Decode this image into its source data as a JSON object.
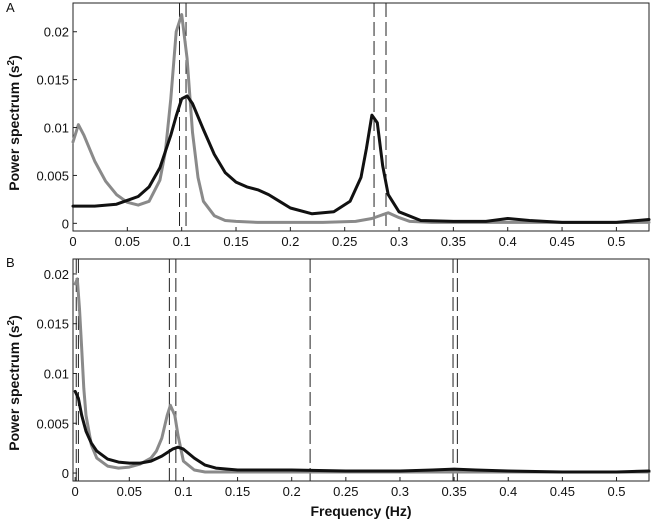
{
  "figure": {
    "ylabel": "Power spectrum (s",
    "ylabel_sup": "2",
    "ylabel_end": ")",
    "xlabel": "Frequency (Hz)"
  },
  "chart_data": [
    {
      "panel": "A",
      "type": "line",
      "xlabel": "",
      "ylabel": "Power spectrum (s2)",
      "xlim": [
        0,
        0.53
      ],
      "ylim": [
        -0.0008,
        0.023
      ],
      "xticks": [
        0,
        0.05,
        0.1,
        0.15,
        0.2,
        0.25,
        0.3,
        0.35,
        0.4,
        0.45,
        0.5
      ],
      "xtick_labels": [
        "0",
        "0.05",
        "0.1",
        "0.15",
        "0.2",
        "0.25",
        "0.3",
        "0.35",
        "0.4",
        "0.45",
        "0.5"
      ],
      "yticks": [
        0,
        0.005,
        0.01,
        0.015,
        0.02
      ],
      "ytick_labels": [
        "0",
        "0.005",
        "0.01",
        "0.015",
        "0.02"
      ],
      "grid": false,
      "legend": "none",
      "vlines": [
        0.098,
        0.104,
        0.277,
        0.288
      ],
      "series": [
        {
          "color": "#8a8a8a",
          "x": [
            0,
            0.005,
            0.01,
            0.02,
            0.03,
            0.04,
            0.05,
            0.06,
            0.07,
            0.08,
            0.085,
            0.09,
            0.095,
            0.1,
            0.105,
            0.11,
            0.115,
            0.12,
            0.13,
            0.14,
            0.15,
            0.17,
            0.2,
            0.23,
            0.26,
            0.275,
            0.285,
            0.29,
            0.3,
            0.31,
            0.33,
            0.4,
            0.5,
            0.53
          ],
          "y": [
            0.0085,
            0.0103,
            0.0092,
            0.0065,
            0.0044,
            0.003,
            0.0022,
            0.0019,
            0.0023,
            0.0045,
            0.0075,
            0.013,
            0.02,
            0.0218,
            0.0172,
            0.0095,
            0.0048,
            0.0023,
            0.0008,
            0.0003,
            0.0002,
            0.0001,
            0.0001,
            0.0001,
            0.0002,
            0.0005,
            0.0009,
            0.0011,
            0.0006,
            0.0002,
            0.0001,
            0.0001,
            0.0001,
            0.0001
          ]
        },
        {
          "color": "#111111",
          "x": [
            0,
            0.02,
            0.04,
            0.06,
            0.07,
            0.08,
            0.09,
            0.095,
            0.1,
            0.105,
            0.11,
            0.12,
            0.13,
            0.14,
            0.15,
            0.16,
            0.17,
            0.18,
            0.19,
            0.2,
            0.22,
            0.24,
            0.255,
            0.265,
            0.27,
            0.275,
            0.28,
            0.285,
            0.29,
            0.3,
            0.32,
            0.35,
            0.38,
            0.4,
            0.42,
            0.45,
            0.5,
            0.53
          ],
          "y": [
            0.0018,
            0.0018,
            0.002,
            0.0028,
            0.0038,
            0.0058,
            0.0092,
            0.0112,
            0.013,
            0.0133,
            0.0125,
            0.0098,
            0.0072,
            0.0053,
            0.0043,
            0.0038,
            0.0035,
            0.003,
            0.0023,
            0.0016,
            0.001,
            0.0012,
            0.0023,
            0.0048,
            0.0078,
            0.0113,
            0.0105,
            0.006,
            0.003,
            0.0012,
            0.0003,
            0.0002,
            0.0002,
            0.0005,
            0.0003,
            0.0001,
            0.0001,
            0.0004
          ]
        }
      ]
    },
    {
      "panel": "B",
      "type": "line",
      "xlabel": "Frequency (Hz)",
      "ylabel": "Power spectrum (s2)",
      "xlim": [
        -0.002,
        0.53
      ],
      "ylim": [
        -0.0008,
        0.0215
      ],
      "xticks": [
        0,
        0.05,
        0.1,
        0.15,
        0.2,
        0.25,
        0.3,
        0.35,
        0.4,
        0.45,
        0.5
      ],
      "xtick_labels": [
        "0",
        "0.05",
        "0.1",
        "0.15",
        "0.2",
        "0.25",
        "0.3",
        "0.35",
        "0.4",
        "0.45",
        "0.5"
      ],
      "yticks": [
        0,
        0.005,
        0.01,
        0.015,
        0.02
      ],
      "ytick_labels": [
        "0",
        "0.005",
        "0.01",
        "0.015",
        "0.02"
      ],
      "grid": false,
      "legend": "none",
      "vlines": [
        0.001,
        0.003,
        0.087,
        0.093,
        0.217,
        0.349,
        0.353
      ],
      "series": [
        {
          "color": "#8a8a8a",
          "x": [
            0,
            0.002,
            0.004,
            0.006,
            0.008,
            0.01,
            0.015,
            0.02,
            0.03,
            0.04,
            0.05,
            0.06,
            0.07,
            0.075,
            0.08,
            0.085,
            0.088,
            0.092,
            0.095,
            0.1,
            0.11,
            0.12,
            0.15,
            0.2,
            0.3,
            0.35,
            0.4,
            0.5,
            0.53
          ],
          "y": [
            0.019,
            0.0195,
            0.0165,
            0.0125,
            0.0085,
            0.0058,
            0.0028,
            0.0015,
            0.0007,
            0.0005,
            0.0006,
            0.0009,
            0.0015,
            0.0022,
            0.0035,
            0.0058,
            0.0068,
            0.0058,
            0.0038,
            0.0012,
            0.0003,
            0.0001,
            0.0001,
            0.0001,
            0.0001,
            0.0001,
            0.0001,
            0.0001,
            0.0001
          ]
        },
        {
          "color": "#111111",
          "x": [
            0,
            0.003,
            0.006,
            0.01,
            0.015,
            0.02,
            0.03,
            0.04,
            0.05,
            0.06,
            0.07,
            0.08,
            0.09,
            0.095,
            0.1,
            0.11,
            0.12,
            0.13,
            0.15,
            0.2,
            0.25,
            0.3,
            0.33,
            0.35,
            0.37,
            0.4,
            0.45,
            0.5,
            0.53
          ],
          "y": [
            0.0082,
            0.0075,
            0.0058,
            0.0042,
            0.003,
            0.0022,
            0.0014,
            0.0011,
            0.001,
            0.001,
            0.0012,
            0.0017,
            0.0024,
            0.0026,
            0.0024,
            0.0015,
            0.0008,
            0.0005,
            0.0003,
            0.0003,
            0.0002,
            0.0002,
            0.0003,
            0.0004,
            0.0003,
            0.0002,
            0.0001,
            0.0001,
            0.0002
          ]
        }
      ]
    }
  ]
}
